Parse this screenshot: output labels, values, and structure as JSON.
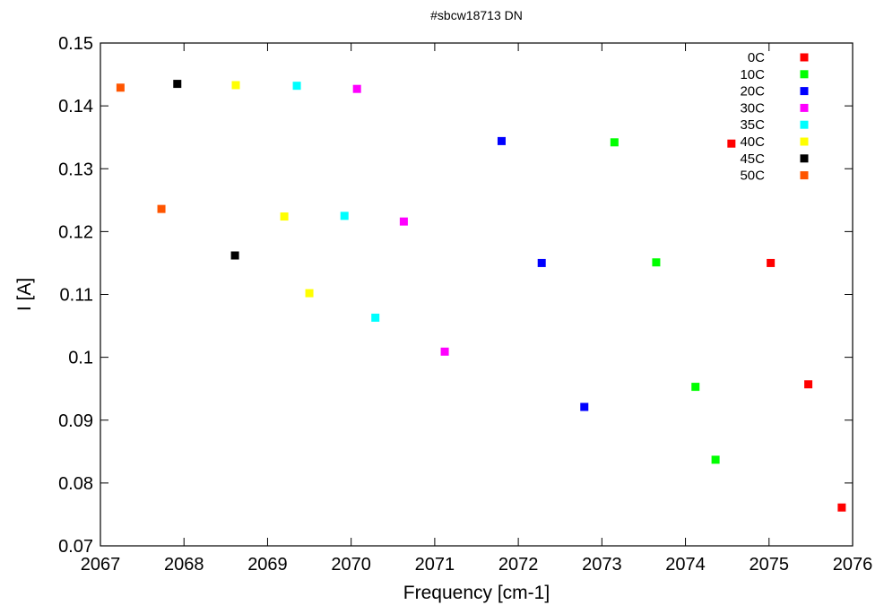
{
  "chart_data": {
    "type": "scatter",
    "title": "#sbcw18713 DN",
    "xlabel": "Frequency [cm-1]",
    "ylabel": "I [A]",
    "xlim": [
      2067,
      2076
    ],
    "ylim": [
      0.07,
      0.15
    ],
    "xticks": [
      "2067",
      "2068",
      "2069",
      "2070",
      "2071",
      "2072",
      "2073",
      "2074",
      "2075",
      "2076"
    ],
    "yticks": [
      "0.07",
      "0.08",
      "0.09",
      "0.1",
      "0.11",
      "0.12",
      "0.13",
      "0.14",
      "0.15"
    ],
    "grid": false,
    "legend_position": "top-right",
    "series": [
      {
        "name": "0C",
        "color": "#ff0000",
        "points": [
          [
            2074.55,
            0.134
          ],
          [
            2075.02,
            0.115
          ],
          [
            2075.47,
            0.0957
          ],
          [
            2075.87,
            0.0761
          ]
        ]
      },
      {
        "name": "10C",
        "color": "#00ff00",
        "points": [
          [
            2073.15,
            0.1342
          ],
          [
            2073.65,
            0.1151
          ],
          [
            2074.12,
            0.0953
          ],
          [
            2074.36,
            0.0837
          ]
        ]
      },
      {
        "name": "20C",
        "color": "#0000ff",
        "points": [
          [
            2071.8,
            0.1344
          ],
          [
            2072.28,
            0.115
          ],
          [
            2072.79,
            0.0921
          ]
        ]
      },
      {
        "name": "30C",
        "color": "#ff00ff",
        "points": [
          [
            2070.07,
            0.1427
          ],
          [
            2070.63,
            0.1216
          ],
          [
            2071.12,
            0.1009
          ]
        ]
      },
      {
        "name": "35C",
        "color": "#00ffff",
        "points": [
          [
            2069.35,
            0.1432
          ],
          [
            2069.92,
            0.1225
          ],
          [
            2070.29,
            0.1063
          ]
        ]
      },
      {
        "name": "40C",
        "color": "#ffff00",
        "points": [
          [
            2068.62,
            0.1433
          ],
          [
            2069.2,
            0.1224
          ],
          [
            2069.5,
            0.1102
          ]
        ]
      },
      {
        "name": "45C",
        "color": "#000000",
        "points": [
          [
            2067.92,
            0.1435
          ],
          [
            2068.61,
            0.1162
          ]
        ]
      },
      {
        "name": "50C",
        "color": "#ff5500",
        "points": [
          [
            2067.24,
            0.1429
          ],
          [
            2067.73,
            0.1236
          ]
        ]
      }
    ]
  }
}
